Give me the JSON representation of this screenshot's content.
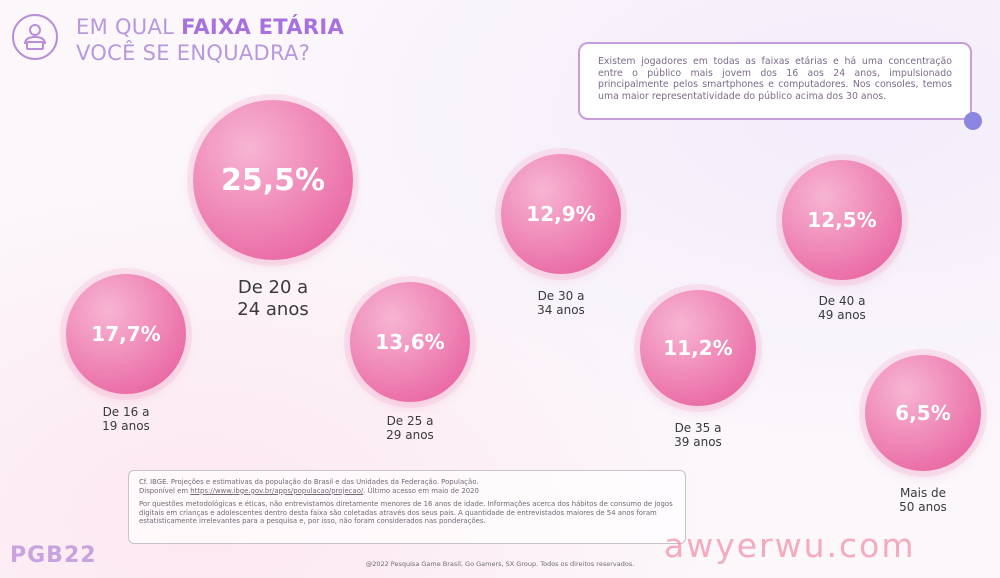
{
  "header": {
    "title_prefix": "EM QUAL ",
    "title_bold": "FAIXA ETÁRIA",
    "title_line2": "VOCÊ SE ENQUADRA?",
    "icon": "person-laptop-icon"
  },
  "note": "Existem jogadores em todas as faixas etárias e há uma concentração entre o público mais jovem dos 16 aos 24 anos, impulsionado principalmente pelos smartphones e computadores. Nos consoles, temos uma maior representatividade do público acima dos 30 anos.",
  "chart_data": {
    "type": "bubble",
    "categories": [
      "De 16 a\n19 anos",
      "De 20 a\n24 anos",
      "De 25 a\n29 anos",
      "De 30 a\n34 anos",
      "De 35 a\n39 anos",
      "De 40 a\n49 anos",
      "Mais de\n50 anos"
    ],
    "values": [
      17.7,
      25.5,
      13.6,
      12.9,
      11.2,
      12.5,
      6.5
    ],
    "value_labels": [
      "17,7%",
      "25,5%",
      "13,6%",
      "12,9%",
      "11,2%",
      "12,5%",
      "6,5%"
    ],
    "unit": "%"
  },
  "footnote": {
    "source_line1": "Cf. IBGE. Projeções e estimativas da população do Brasil e das Unidades da Federação. População.",
    "source_line2_prefix": "Disponível em ",
    "source_link": "https://www.ibge.gov.br/apps/populacao/projecao/",
    "source_line2_suffix": ". Último acesso em maio de 2020",
    "method": "Por questões metodológicas e éticas, não entrevistamos diretamente menores de 16 anos de idade. Informações acerca dos hábitos de consumo de jogos digitais em crianças e adolescentes dentro desta faixa são coletadas através dos seus pais. A quantidade de entrevistados maiores de 54 anos foram estatisticamente irrelevantes para a pesquisa e, por isso, não foram considerados nas ponderações."
  },
  "copyright": "@2022 Pesquisa Game Brasil, Go Gamers, SX Group. Todos os direitos reservados.",
  "logo": "PGB22",
  "watermark": "awyerwu.com",
  "colors": {
    "title": "#b898dc",
    "title_bold": "#a772de",
    "bubble_light": "#f7b5d3",
    "bubble_dark": "#e3438d",
    "note_border": "#c69ed9",
    "dot": "#8c86e3"
  }
}
